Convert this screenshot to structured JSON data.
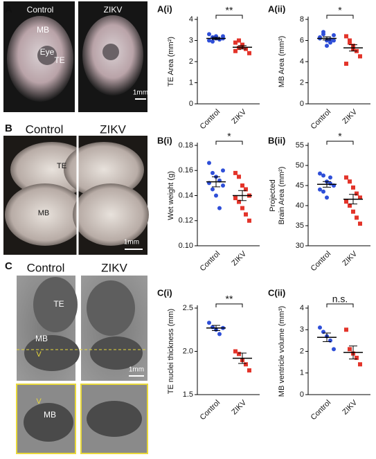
{
  "figure_panels": {
    "A": {
      "letter": "A",
      "left": "Control",
      "right": "ZIKV",
      "labels": [
        "MB",
        "Eye",
        "TE"
      ],
      "scale": "1mm"
    },
    "B": {
      "letter": "B",
      "left": "Control",
      "right": "ZIKV",
      "labels": [
        "TE",
        "MB"
      ],
      "scale": "1mm"
    },
    "C": {
      "letter": "C",
      "left": "Control",
      "right": "ZIKV",
      "labels": [
        "TE",
        "MB",
        "V"
      ],
      "scale": "1mm",
      "inset_labels": [
        "V",
        "MB"
      ]
    }
  },
  "chart_data": [
    {
      "type": "dotplot",
      "title": "A(i)",
      "ylabel": "TE Area (mm²)",
      "categories": [
        "Control",
        "ZIKV"
      ],
      "annotation": "**",
      "ylim": [
        0,
        4
      ],
      "yticks": [
        0,
        1,
        2,
        3,
        4
      ],
      "groups": [
        {
          "color": "#2f4fd8",
          "values": [
            3.0,
            3.15,
            3.2,
            3.05,
            3.1,
            3.3,
            2.95,
            3.1,
            3.05,
            3.2
          ],
          "mean": 3.1,
          "sem": 0.05
        },
        {
          "color": "#e3342a",
          "values": [
            2.9,
            2.65,
            2.7,
            2.6,
            2.4,
            2.5,
            3.0,
            2.8
          ],
          "mean": 2.68,
          "sem": 0.08
        }
      ]
    },
    {
      "type": "dotplot",
      "title": "A(ii)",
      "ylabel": "MB Area (mm²)",
      "categories": [
        "Control",
        "ZIKV"
      ],
      "annotation": "*",
      "ylim": [
        0,
        8
      ],
      "yticks": [
        0,
        2,
        4,
        6,
        8
      ],
      "groups": [
        {
          "color": "#2f4fd8",
          "values": [
            6.3,
            6.8,
            6.0,
            5.8,
            6.5,
            6.2,
            6.6,
            5.5,
            6.1,
            6.0
          ],
          "mean": 6.2,
          "sem": 0.15
        },
        {
          "color": "#e3342a",
          "values": [
            6.4,
            5.8,
            5.5,
            5.0,
            4.5,
            3.8,
            6.0,
            5.2
          ],
          "mean": 5.3,
          "sem": 0.3
        }
      ]
    },
    {
      "type": "dotplot",
      "title": "B(i)",
      "ylabel": "Wet weight (g)",
      "categories": [
        "Control",
        "ZIKV"
      ],
      "annotation": "*",
      "ylim": [
        0.1,
        0.18
      ],
      "yticks": [
        {
          "value": 0.1,
          "label": "0.10"
        },
        0.12,
        0.14,
        0.16,
        0.18
      ],
      "groups": [
        {
          "color": "#2f4fd8",
          "values": [
            0.166,
            0.158,
            0.155,
            0.152,
            0.148,
            0.15,
            0.145,
            0.14,
            0.13,
            0.16
          ],
          "mean": 0.151,
          "sem": 0.004
        },
        {
          "color": "#e3342a",
          "values": [
            0.158,
            0.155,
            0.148,
            0.145,
            0.14,
            0.138,
            0.135,
            0.13,
            0.125,
            0.12
          ],
          "mean": 0.14,
          "sem": 0.004
        }
      ]
    },
    {
      "type": "dotplot",
      "title": "B(ii)",
      "ylabel": [
        "Projected",
        "Brain Area (mm²)"
      ],
      "categories": [
        "Control",
        "ZIKV"
      ],
      "annotation": "*",
      "ylim": [
        30,
        55
      ],
      "yticks": [
        30,
        35,
        40,
        45,
        50,
        55
      ],
      "groups": [
        {
          "color": "#2f4fd8",
          "values": [
            48,
            47.5,
            46,
            45.5,
            45,
            44,
            43.5,
            42,
            47,
            45
          ],
          "mean": 45.3,
          "sem": 0.7
        },
        {
          "color": "#e3342a",
          "values": [
            47,
            46,
            44.5,
            43,
            42,
            41,
            40,
            38.5,
            37,
            35.5
          ],
          "mean": 41.6,
          "sem": 1.2
        }
      ]
    },
    {
      "type": "dotplot",
      "title": "C(i)",
      "ylabel": "TE nuclei thickness (mm)",
      "categories": [
        "Control",
        "ZIKV"
      ],
      "annotation": "**",
      "ylim": [
        1.5,
        2.5
      ],
      "yticks": [
        1.5,
        {
          "value": 2,
          "label": "2.0"
        },
        2.5
      ],
      "groups": [
        {
          "color": "#2f4fd8",
          "values": [
            2.33,
            2.28,
            2.25,
            2.2,
            2.27
          ],
          "mean": 2.27,
          "sem": 0.03
        },
        {
          "color": "#e3342a",
          "values": [
            2.0,
            1.97,
            1.9,
            1.85,
            1.78
          ],
          "mean": 1.92,
          "sem": 0.06
        }
      ]
    },
    {
      "type": "dotplot",
      "title": "C(ii)",
      "ylabel": "MB ventricle volume (mm³)",
      "categories": [
        "Control",
        "ZIKV"
      ],
      "annotation": "n.s.",
      "ylim": [
        0,
        4
      ],
      "yticks": [
        0,
        1,
        2,
        3,
        4
      ],
      "groups": [
        {
          "color": "#2f4fd8",
          "values": [
            3.1,
            2.9,
            2.7,
            2.5,
            2.1
          ],
          "mean": 2.65,
          "sem": 0.2
        },
        {
          "color": "#e3342a",
          "values": [
            3.0,
            2.1,
            1.9,
            1.7,
            1.4
          ],
          "mean": 1.95,
          "sem": 0.3
        }
      ]
    }
  ]
}
